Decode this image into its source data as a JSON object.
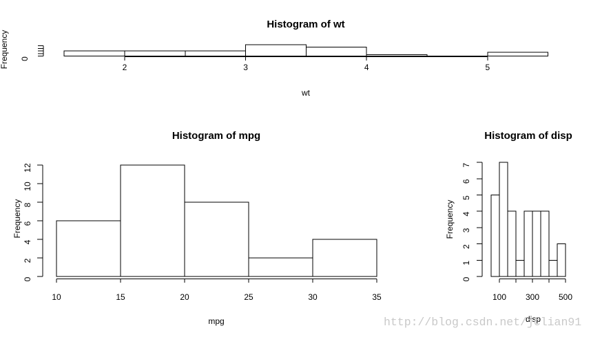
{
  "page": {
    "background": "#ffffff",
    "plot_line_color": "#000000"
  },
  "watermark": {
    "text": "http://blog.csdn.net/jclian91",
    "color": "#c9c9c9"
  },
  "chart_data": [
    {
      "id": "wt",
      "type": "bar",
      "subtype": "histogram",
      "title": "Histogram of wt",
      "xlabel": "wt",
      "ylabel": "Frequency",
      "bin_edges": [
        1.5,
        2.0,
        2.5,
        3.0,
        3.5,
        4.0,
        4.5,
        5.0,
        5.5
      ],
      "counts": [
        4,
        4,
        4,
        9,
        7,
        1,
        0,
        3
      ],
      "x_ticks": [
        2,
        3,
        4,
        5
      ],
      "x_tick_labels": [
        "2",
        "3",
        "4",
        "5"
      ],
      "y_ticks": [
        0,
        2,
        4,
        6,
        8
      ],
      "y_tick_labels": [
        "0",
        "",
        "",
        "",
        ""
      ],
      "xlim": [
        1.34,
        5.66
      ],
      "ylim": [
        0,
        9
      ],
      "grid": false,
      "legend": "none",
      "bar_fill": "none",
      "bar_stroke": "#000000"
    },
    {
      "id": "mpg",
      "type": "bar",
      "subtype": "histogram",
      "title": "Histogram of mpg",
      "xlabel": "mpg",
      "ylabel": "Frequency",
      "bin_edges": [
        10,
        15,
        20,
        25,
        30,
        35
      ],
      "counts": [
        6,
        12,
        8,
        2,
        4
      ],
      "x_ticks": [
        10,
        15,
        20,
        25,
        30,
        35
      ],
      "x_tick_labels": [
        "10",
        "15",
        "20",
        "25",
        "30",
        "35"
      ],
      "y_ticks": [
        0,
        2,
        4,
        6,
        8,
        10,
        12
      ],
      "y_tick_labels": [
        "0",
        "2",
        "4",
        "6",
        "8",
        "10",
        "12"
      ],
      "xlim": [
        9,
        36
      ],
      "ylim": [
        0,
        12
      ],
      "grid": false,
      "legend": "none",
      "bar_fill": "none",
      "bar_stroke": "#000000"
    },
    {
      "id": "disp",
      "type": "bar",
      "subtype": "histogram",
      "title": "Histogram of disp",
      "xlabel": "disp",
      "ylabel": "Frequency",
      "bin_edges": [
        50,
        100,
        150,
        200,
        250,
        300,
        350,
        400,
        450,
        500
      ],
      "counts": [
        5,
        7,
        4,
        1,
        4,
        4,
        4,
        1,
        2
      ],
      "x_ticks": [
        100,
        200,
        300,
        400,
        500
      ],
      "x_tick_labels": [
        "100",
        "",
        "300",
        "",
        "500"
      ],
      "y_ticks": [
        0,
        1,
        2,
        3,
        4,
        5,
        6,
        7
      ],
      "y_tick_labels": [
        "0",
        "1",
        "2",
        "3",
        "4",
        "5",
        "6",
        "7"
      ],
      "xlim": [
        32,
        518
      ],
      "ylim": [
        0,
        7
      ],
      "grid": false,
      "legend": "none",
      "bar_fill": "none",
      "bar_stroke": "#000000"
    }
  ]
}
